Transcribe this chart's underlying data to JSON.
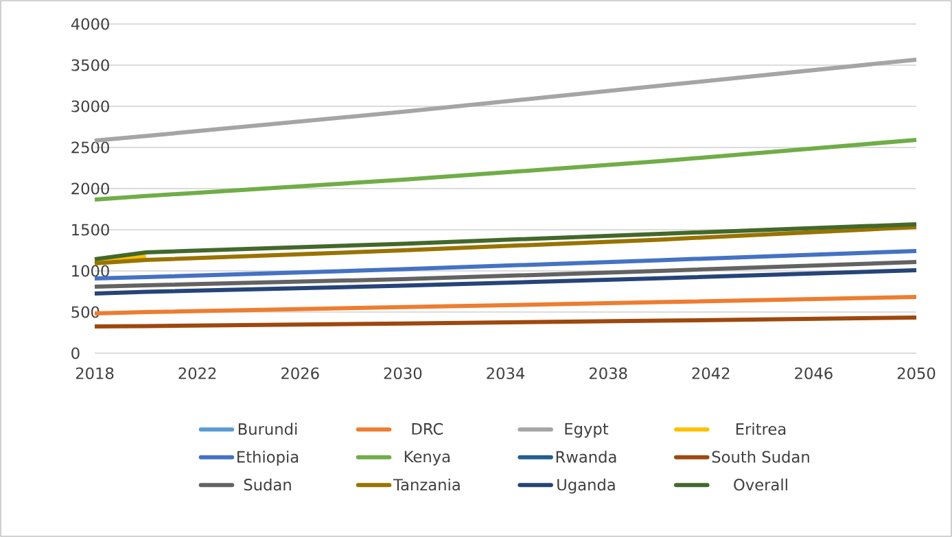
{
  "chart_data": {
    "type": "line",
    "x": [
      2018,
      2020,
      2030,
      2040,
      2050
    ],
    "xlim": [
      2018,
      2050
    ],
    "xticks": [
      2018,
      2022,
      2026,
      2030,
      2034,
      2038,
      2042,
      2046,
      2050
    ],
    "ylim": [
      0,
      4000
    ],
    "yticks": [
      0,
      500,
      1000,
      1500,
      2000,
      2500,
      3000,
      3500,
      4000
    ],
    "grid": "y",
    "legend": "bottom",
    "series": [
      {
        "name": "Burundi",
        "color": "#5b9bd5",
        "values": [
          null,
          null,
          null,
          null,
          null
        ]
      },
      {
        "name": "DRC",
        "color": "#ed7d31",
        "values": [
          483,
          500,
          560,
          620,
          683
        ]
      },
      {
        "name": "Egypt",
        "color": "#a5a5a5",
        "values": [
          2583,
          2640,
          2933,
          3250,
          3567
        ]
      },
      {
        "name": "Eritrea",
        "color": "#ffc000",
        "values": [
          1100,
          1175,
          null,
          null,
          null
        ]
      },
      {
        "name": "Ethiopia",
        "color": "#4472c4",
        "values": [
          908,
          925,
          1020,
          1130,
          1242
        ]
      },
      {
        "name": "Kenya",
        "color": "#70ad47",
        "values": [
          1867,
          1910,
          2108,
          2333,
          2592
        ]
      },
      {
        "name": "Rwanda",
        "color": "#255e91",
        "values": [
          null,
          null,
          null,
          null,
          null
        ]
      },
      {
        "name": "South Sudan",
        "color": "#9e480e",
        "values": [
          325,
          330,
          360,
          395,
          433
        ]
      },
      {
        "name": "Sudan",
        "color": "#636363",
        "values": [
          808,
          825,
          900,
          1000,
          1108
        ]
      },
      {
        "name": "Tanzania",
        "color": "#997300",
        "values": [
          1092,
          1133,
          1250,
          1380,
          1533
        ]
      },
      {
        "name": "Uganda",
        "color": "#264478",
        "values": [
          725,
          745,
          820,
          910,
          1008
        ]
      },
      {
        "name": "Overall",
        "color": "#43682b",
        "values": [
          1142,
          1225,
          1330,
          1450,
          1567
        ]
      }
    ]
  }
}
